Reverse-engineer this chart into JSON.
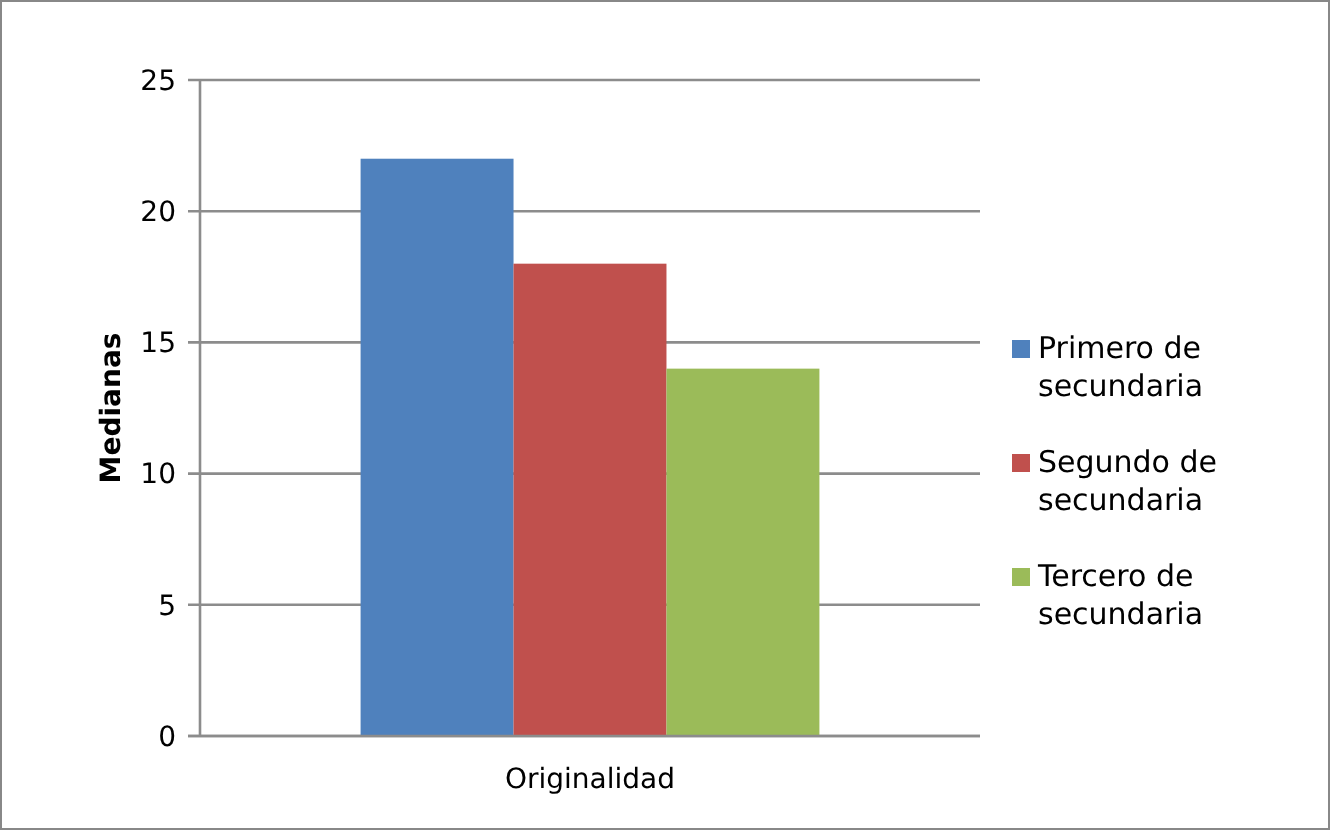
{
  "chart_data": {
    "type": "bar",
    "categories": [
      "Originalidad"
    ],
    "ylabel": "Medianas",
    "series": [
      {
        "name": "Primero de secundaria",
        "color": "#4f81bd",
        "values": [
          22
        ]
      },
      {
        "name": "Segundo de secundaria",
        "color": "#c0504d",
        "values": [
          18
        ]
      },
      {
        "name": "Tercero de secundaria",
        "color": "#9bbb59",
        "values": [
          14
        ]
      }
    ],
    "ylim": [
      0,
      25
    ],
    "yticks": [
      0,
      5,
      10,
      15,
      20,
      25
    ],
    "grid": "y",
    "legend": "right"
  }
}
